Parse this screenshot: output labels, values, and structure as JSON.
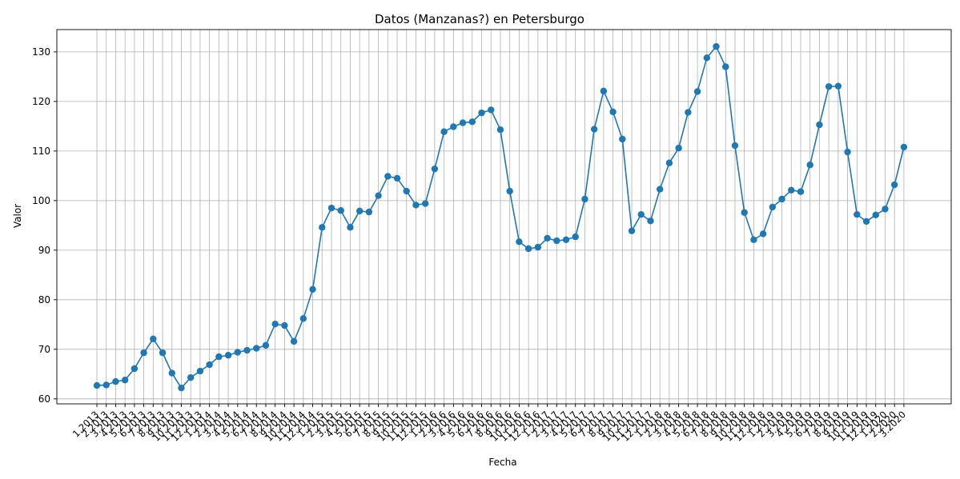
{
  "chart_data": {
    "type": "line",
    "title": "Datos (Manzanas?) en Petersburgo",
    "xlabel": "Fecha",
    "ylabel": "Valor",
    "ylim": [
      59,
      134.5
    ],
    "yticks": [
      60,
      70,
      80,
      90,
      100,
      110,
      120,
      130
    ],
    "grid": true,
    "line_color": "#1f77b4",
    "categories": [
      "1.2013",
      "2.2013",
      "3.2013",
      "4.2013",
      "5.2013",
      "6.2013",
      "7.2013",
      "8.2013",
      "9.2013",
      "10.2013",
      "11.2013",
      "12.2013",
      "1.2014",
      "2.2014",
      "3.2014",
      "4.2014",
      "5.2014",
      "6.2014",
      "7.2014",
      "8.2014",
      "9.2014",
      "10.2014",
      "11.2014",
      "12.2014",
      "1.2015",
      "2.2015",
      "3.2015",
      "4.2015",
      "5.2015",
      "6.2015",
      "7.2015",
      "8.2015",
      "9.2015",
      "10.2015",
      "11.2015",
      "12.2015",
      "1.2016",
      "2.2016",
      "3.2016",
      "4.2016",
      "5.2016",
      "6.2016",
      "7.2016",
      "8.2016",
      "9.2016",
      "10.2016",
      "11.2016",
      "12.2016",
      "1.2017",
      "2.2017",
      "3.2017",
      "4.2017",
      "5.2017",
      "6.2017",
      "7.2017",
      "8.2017",
      "9.2017",
      "10.2017",
      "11.2017",
      "12.2017",
      "1.2018",
      "2.2018",
      "3.2018",
      "4.2018",
      "5.2018",
      "6.2018",
      "7.2018",
      "8.2018",
      "9.2018",
      "10.2018",
      "11.2018",
      "12.2018",
      "1.2019",
      "2.2019",
      "3.2019",
      "4.2019",
      "5.2019",
      "6.2019",
      "7.2019",
      "8.2019",
      "9.2019",
      "10.2019",
      "11.2019",
      "12.2019",
      "1.2020",
      "2.2020",
      "3.2020"
    ],
    "values": [
      62.7,
      62.8,
      63.5,
      63.8,
      66.1,
      69.3,
      72.1,
      69.3,
      65.2,
      62.2,
      64.3,
      65.6,
      66.9,
      68.5,
      68.8,
      69.4,
      69.8,
      70.2,
      70.8,
      75.1,
      74.8,
      71.6,
      76.2,
      82.1,
      94.6,
      98.5,
      98.0,
      94.6,
      97.9,
      97.7,
      101.0,
      104.9,
      104.5,
      101.9,
      99.1,
      99.4,
      106.4,
      113.9,
      114.9,
      115.7,
      115.9,
      117.7,
      118.3,
      114.3,
      101.9,
      91.7,
      90.3,
      90.6,
      92.4,
      91.9,
      92.1,
      92.7,
      100.3,
      114.4,
      122.1,
      117.9,
      112.4,
      93.9,
      97.2,
      95.9,
      102.3,
      107.6,
      110.6,
      117.8,
      122.0,
      128.8,
      131.1,
      127.0,
      111.1,
      97.6,
      92.1,
      93.3,
      98.7,
      100.3,
      102.1,
      101.8,
      107.2,
      115.3,
      123.0,
      123.1,
      109.8,
      97.2,
      95.8,
      97.1,
      98.3,
      103.2,
      110.8
    ]
  }
}
